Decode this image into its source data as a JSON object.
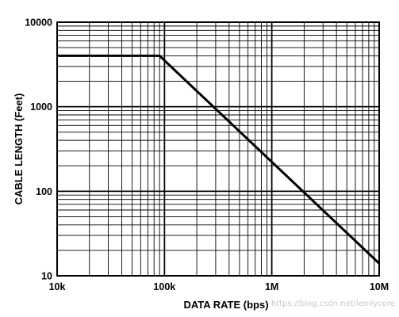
{
  "chart_data": {
    "type": "line",
    "title": "",
    "xlabel": "DATA RATE (bps)",
    "ylabel": "CABLE LENGTH (Feet)",
    "x_scale": "log",
    "y_scale": "log",
    "xlim": [
      10000,
      10000000
    ],
    "ylim": [
      10,
      10000
    ],
    "x_ticks": [
      {
        "value": 10000,
        "label": "10k"
      },
      {
        "value": 100000,
        "label": "100k"
      },
      {
        "value": 1000000,
        "label": "1M"
      },
      {
        "value": 10000000,
        "label": "10M"
      }
    ],
    "y_ticks": [
      {
        "value": 10,
        "label": "10"
      },
      {
        "value": 100,
        "label": "100"
      },
      {
        "value": 1000,
        "label": "1000"
      },
      {
        "value": 10000,
        "label": "10000"
      }
    ],
    "grid": true,
    "series": [
      {
        "points": [
          {
            "x": 10000,
            "y": 4000
          },
          {
            "x": 90000,
            "y": 4000
          },
          {
            "x": 10000000,
            "y": 14
          }
        ]
      }
    ]
  },
  "watermark": "https://blog.csdn.net/lemlycore"
}
